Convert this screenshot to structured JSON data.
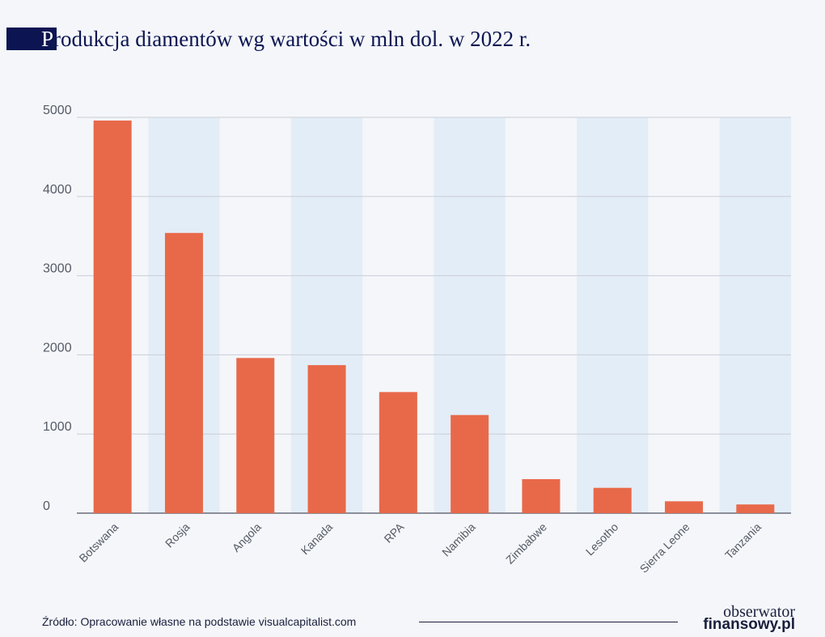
{
  "chart_data": {
    "type": "bar",
    "title": "Produkcja diamentów wg wartości w mln dol. w 2022 r.",
    "categories": [
      "Botswana",
      "Rosja",
      "Angola",
      "Kanada",
      "RPA",
      "Namibia",
      "Zimbabwe",
      "Lesotho",
      "Sierra Leone",
      "Tanzania"
    ],
    "values": [
      4960,
      3540,
      1960,
      1870,
      1530,
      1240,
      430,
      320,
      150,
      110
    ],
    "ylim": [
      0,
      5000
    ],
    "yticks": [
      0,
      1000,
      2000,
      3000,
      4000,
      5000
    ],
    "grid": true,
    "bar_color": "#e8694a",
    "band_color": "#e3edf7"
  },
  "footer": {
    "source": "Źródło: Opracowanie własne na podstawie visualcapitalist.com",
    "logo_line1": "obserwator",
    "logo_line2": "finansowy.pl"
  }
}
